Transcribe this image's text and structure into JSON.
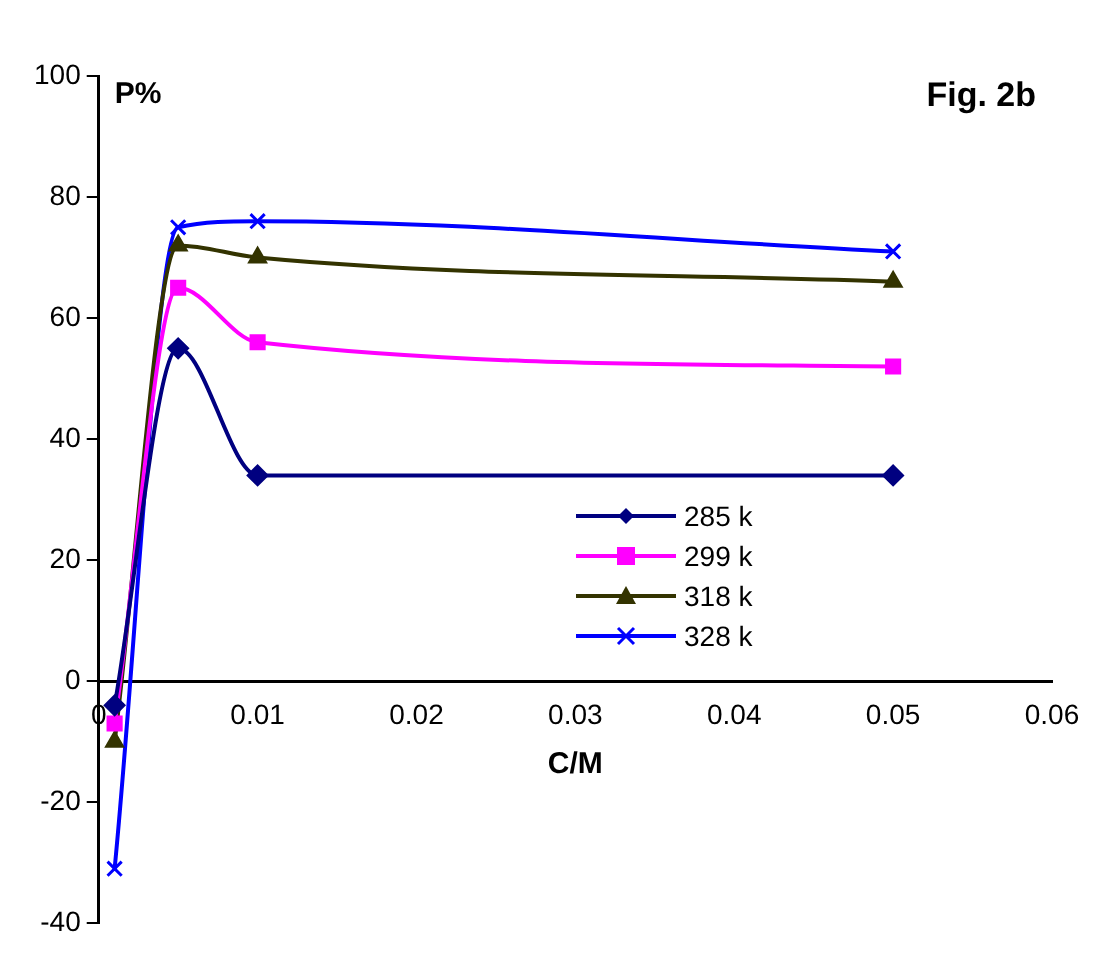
{
  "chart_data": {
    "type": "line",
    "xlabel": "C/M",
    "ylabel": "P%",
    "annotations": [
      "Fig. 2b"
    ],
    "x": [
      0.001,
      0.005,
      0.01,
      0.05
    ],
    "series": [
      {
        "name": "285 k",
        "color": "#000080",
        "marker": "diamond",
        "values": [
          -4,
          55,
          34,
          34
        ]
      },
      {
        "name": "299 k",
        "color": "#ff00ff",
        "marker": "square",
        "values": [
          -7,
          65,
          56,
          52
        ]
      },
      {
        "name": "318 k",
        "color": "#333300",
        "marker": "triangle",
        "values": [
          -10,
          72,
          70,
          66
        ]
      },
      {
        "name": "328 k",
        "color": "#0000ff",
        "marker": "cross",
        "values": [
          -31,
          75,
          76,
          71
        ]
      }
    ],
    "xlim": [
      0,
      0.06
    ],
    "xticks": [
      0,
      0.01,
      0.02,
      0.03,
      0.04,
      0.05,
      0.06
    ],
    "ylim": [
      -40,
      100
    ],
    "yticks": [
      -40,
      -20,
      0,
      20,
      40,
      60,
      80,
      100
    ],
    "grid": false,
    "legend": "bottom right",
    "line_style": "solid"
  }
}
